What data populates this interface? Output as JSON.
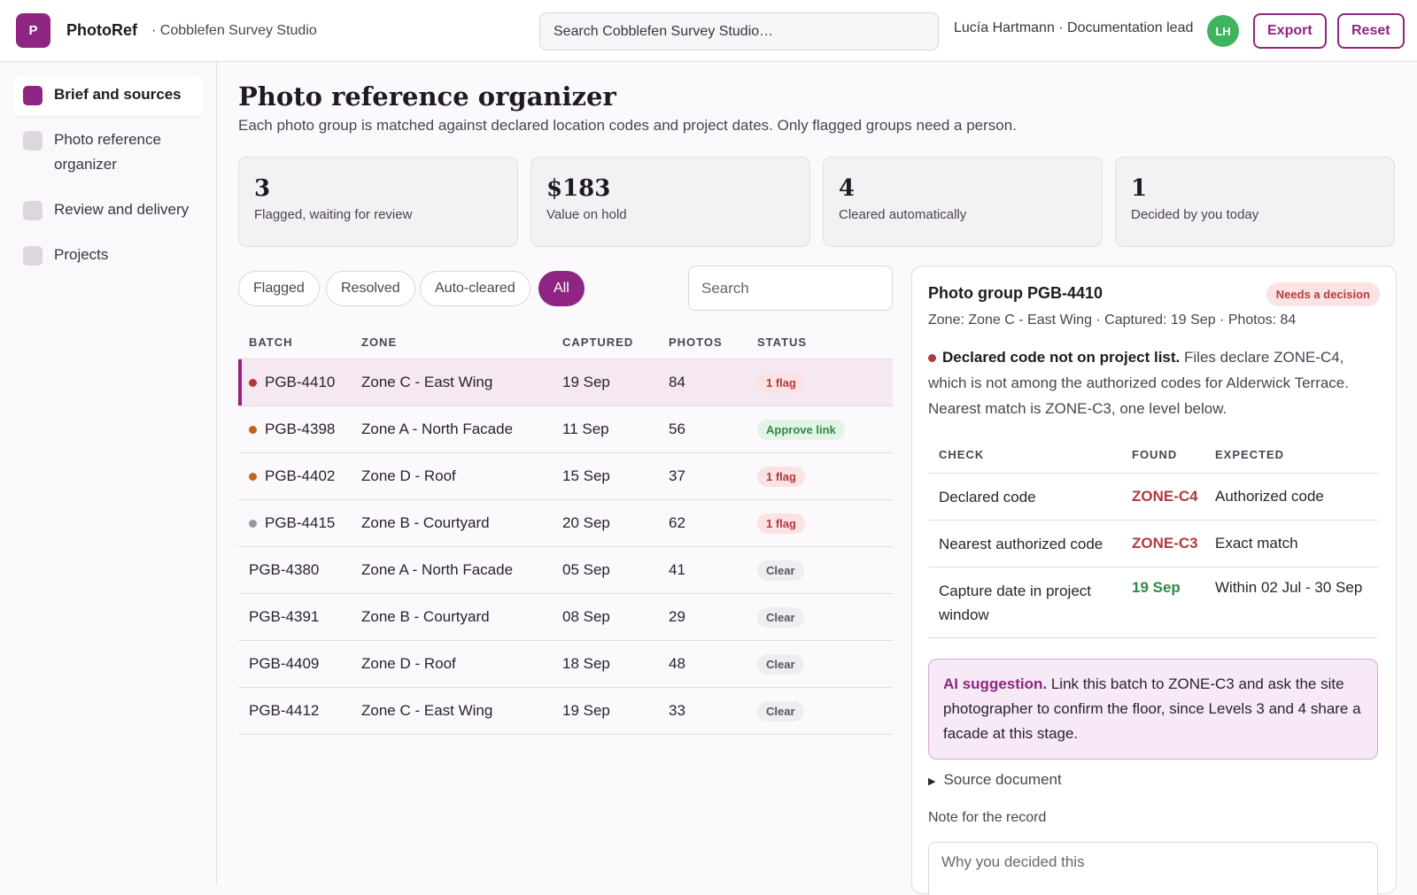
{
  "app": {
    "logo_letter": "P",
    "name": "PhotoRef",
    "org": "· Cobblefen Survey Studio",
    "search_placeholder": "Search Cobblefen Survey Studio…",
    "user": "Lucía Hartmann · Documentation lead",
    "avatar_initials": "LH",
    "export_label": "Export",
    "reset_label": "Reset"
  },
  "sidebar": {
    "items": [
      {
        "label": "Brief and sources",
        "active": true
      },
      {
        "label": "Photo reference organizer",
        "active": false
      },
      {
        "label": "Review and delivery",
        "active": false
      },
      {
        "label": "Projects",
        "active": false
      }
    ]
  },
  "page": {
    "title": "Photo reference organizer",
    "subtitle": "Each photo group is matched against declared location codes and project dates. Only flagged groups need a person."
  },
  "stats": [
    {
      "value": "3",
      "label": "Flagged, waiting for review"
    },
    {
      "value": "$183",
      "label": "Value on hold"
    },
    {
      "value": "4",
      "label": "Cleared automatically"
    },
    {
      "value": "1",
      "label": "Decided by you today"
    }
  ],
  "filters": {
    "chips": [
      "Flagged",
      "Resolved",
      "Auto-cleared",
      "All"
    ],
    "active": "All",
    "search_placeholder": "Search"
  },
  "table": {
    "headers": [
      "BATCH",
      "ZONE",
      "CAPTURED",
      "PHOTOS",
      "STATUS"
    ],
    "rows": [
      {
        "batch": "PGB-4410",
        "zone": "Zone C - East Wing",
        "captured": "19 Sep",
        "photos": "84",
        "status": "1 flag",
        "status_type": "flag",
        "dot": "#b23a3e",
        "selected": true
      },
      {
        "batch": "PGB-4398",
        "zone": "Zone A - North Facade",
        "captured": "11 Sep",
        "photos": "56",
        "status": "Approve link",
        "status_type": "approve",
        "dot": "#c0641e",
        "selected": false
      },
      {
        "batch": "PGB-4402",
        "zone": "Zone D - Roof",
        "captured": "15 Sep",
        "photos": "37",
        "status": "1 flag",
        "status_type": "flag",
        "dot": "#c0641e",
        "selected": false
      },
      {
        "batch": "PGB-4415",
        "zone": "Zone B - Courtyard",
        "captured": "20 Sep",
        "photos": "62",
        "status": "1 flag",
        "status_type": "flag",
        "dot": "#9a96a6",
        "selected": false
      },
      {
        "batch": "PGB-4380",
        "zone": "Zone A - North Facade",
        "captured": "05 Sep",
        "photos": "41",
        "status": "Clear",
        "status_type": "clear",
        "dot": null,
        "selected": false
      },
      {
        "batch": "PGB-4391",
        "zone": "Zone B - Courtyard",
        "captured": "08 Sep",
        "photos": "29",
        "status": "Clear",
        "status_type": "clear",
        "dot": null,
        "selected": false
      },
      {
        "batch": "PGB-4409",
        "zone": "Zone D - Roof",
        "captured": "18 Sep",
        "photos": "48",
        "status": "Clear",
        "status_type": "clear",
        "dot": null,
        "selected": false
      },
      {
        "batch": "PGB-4412",
        "zone": "Zone C - East Wing",
        "captured": "19 Sep",
        "photos": "33",
        "status": "Clear",
        "status_type": "clear",
        "dot": null,
        "selected": false
      }
    ]
  },
  "detail": {
    "title": "Photo group PGB-4410",
    "badge": "Needs a decision",
    "meta": "Zone: Zone C - East Wing · Captured: 19 Sep · Photos: 84",
    "finding_bold": "Declared code not on project list.",
    "finding_text": " Files declare ZONE-C4, which is not among the authorized codes for Alderwick Terrace. Nearest match is ZONE-C3, one level below.",
    "checks_headers": [
      "CHECK",
      "FOUND",
      "EXPECTED"
    ],
    "checks": [
      {
        "check": "Declared code",
        "found": "ZONE-C4",
        "expected": "Authorized code",
        "tone": "red"
      },
      {
        "check": "Nearest authorized code",
        "found": "ZONE-C3",
        "expected": "Exact match",
        "tone": "red"
      },
      {
        "check": "Capture date in project window",
        "found": "19 Sep",
        "expected": "Within 02 Jul - 30 Sep",
        "tone": "green"
      }
    ],
    "ai_bold": "AI suggestion.",
    "ai_text": " Link this batch to ZONE-C3 and ask the site photographer to confirm the floor, since Levels 3 and 4 share a facade at this stage.",
    "source_label": "Source document",
    "note_label": "Note for the record",
    "note_placeholder": "Why you decided this"
  },
  "colors": {
    "accent": "#8e2582",
    "flag": "#b23a3e",
    "ok": "#2f8a45"
  }
}
